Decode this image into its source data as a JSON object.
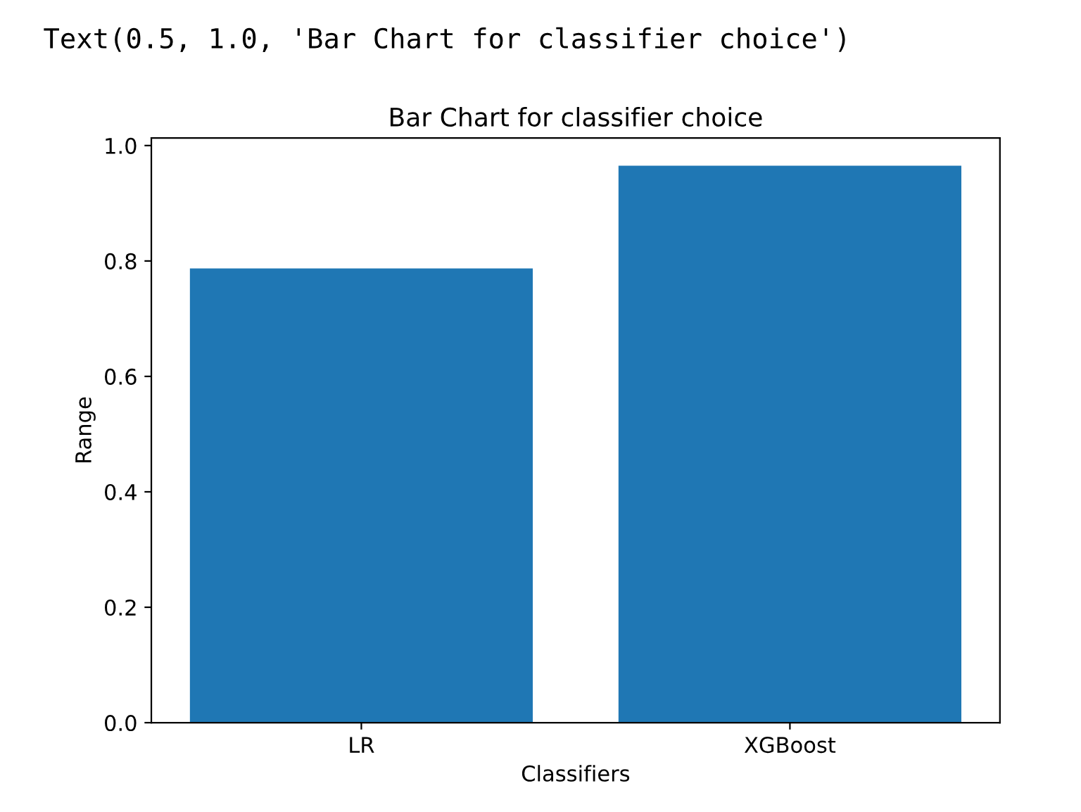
{
  "chart_data": {
    "type": "bar",
    "title": "Bar Chart for classifier choice",
    "xlabel": "Classifiers",
    "ylabel": "Range",
    "categories": [
      "LR",
      "XGBoost"
    ],
    "values": [
      0.787,
      0.965
    ],
    "color": "#1f77b4",
    "ylim": [
      0,
      1.013
    ],
    "yticks": [
      {
        "value": 0,
        "label": "0.0"
      },
      0.2,
      0.4,
      0.6,
      0.8,
      {
        "value": 1,
        "label": "1.0"
      }
    ],
    "grid": false,
    "annotations": [
      "Text(0.5, 1.0, 'Bar Chart for classifier choice')"
    ]
  }
}
